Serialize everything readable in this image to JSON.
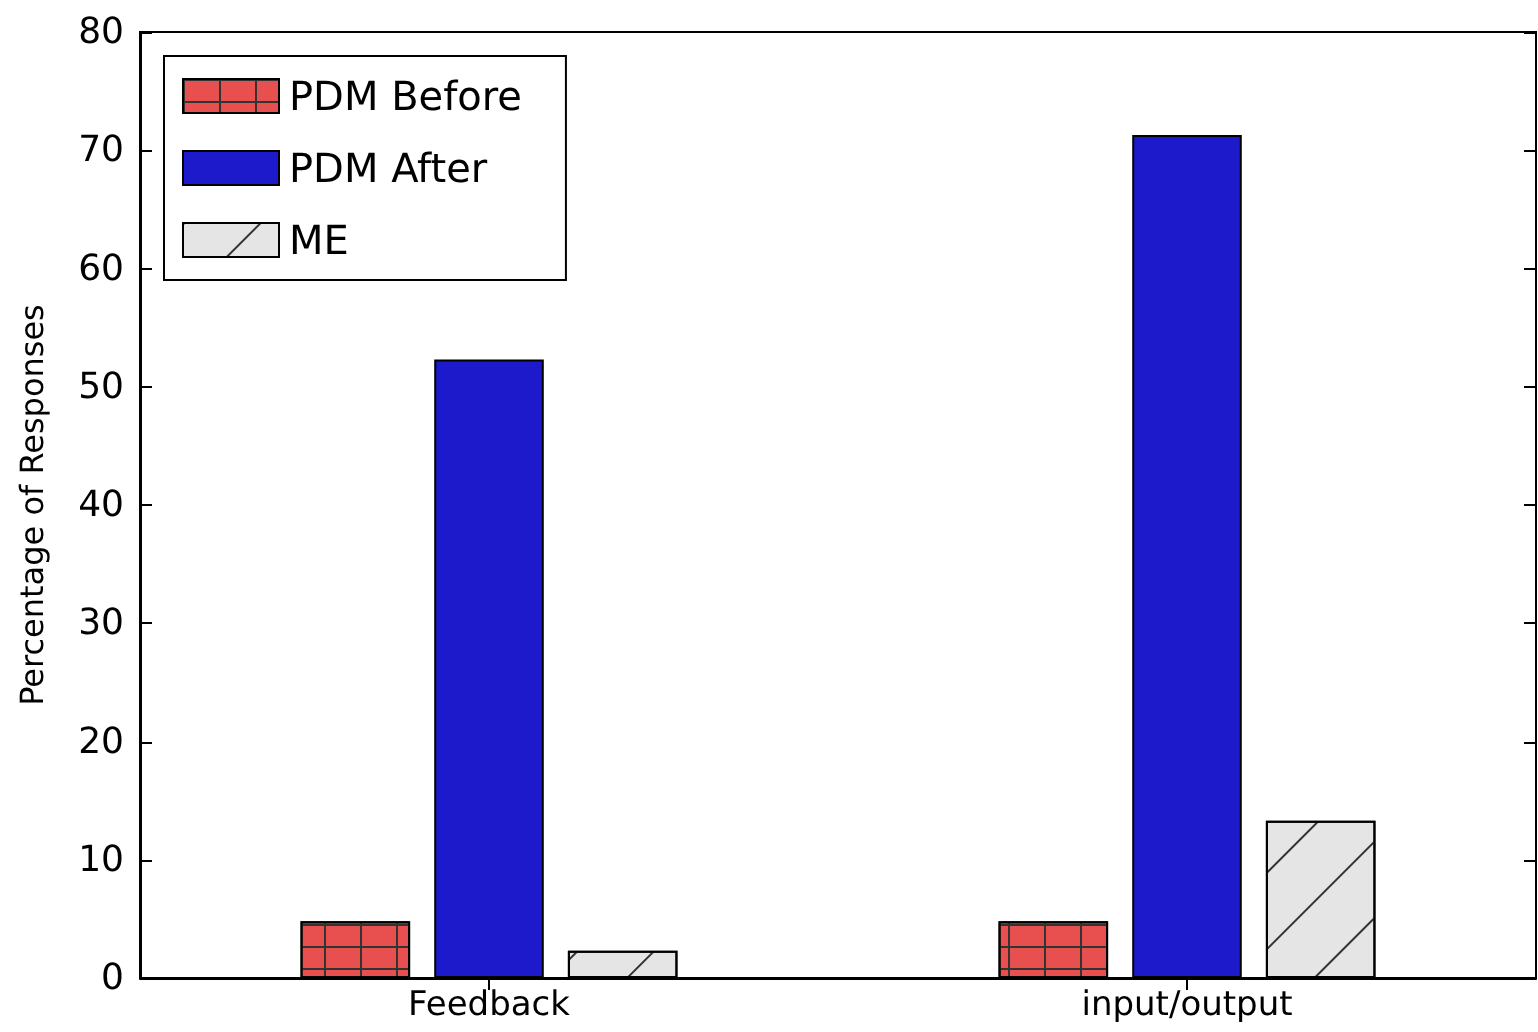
{
  "chart_data": {
    "type": "bar",
    "ylabel": "Percentage of Responses",
    "categories": [
      "Feedback",
      "input/output"
    ],
    "series": [
      {
        "name": "PDM Before",
        "color": "#e85050",
        "values": [
          4.8,
          4.8
        ]
      },
      {
        "name": "PDM After",
        "color": "#1c1acb",
        "values": [
          52.3,
          71.3
        ]
      },
      {
        "name": "ME",
        "color": "#e5e5e5",
        "values": [
          2.3,
          13.3
        ]
      }
    ],
    "ylim": [
      0,
      80
    ],
    "yticks": [
      0,
      10,
      20,
      30,
      40,
      50,
      60,
      70,
      80
    ],
    "grid": false,
    "legend": "top left"
  }
}
